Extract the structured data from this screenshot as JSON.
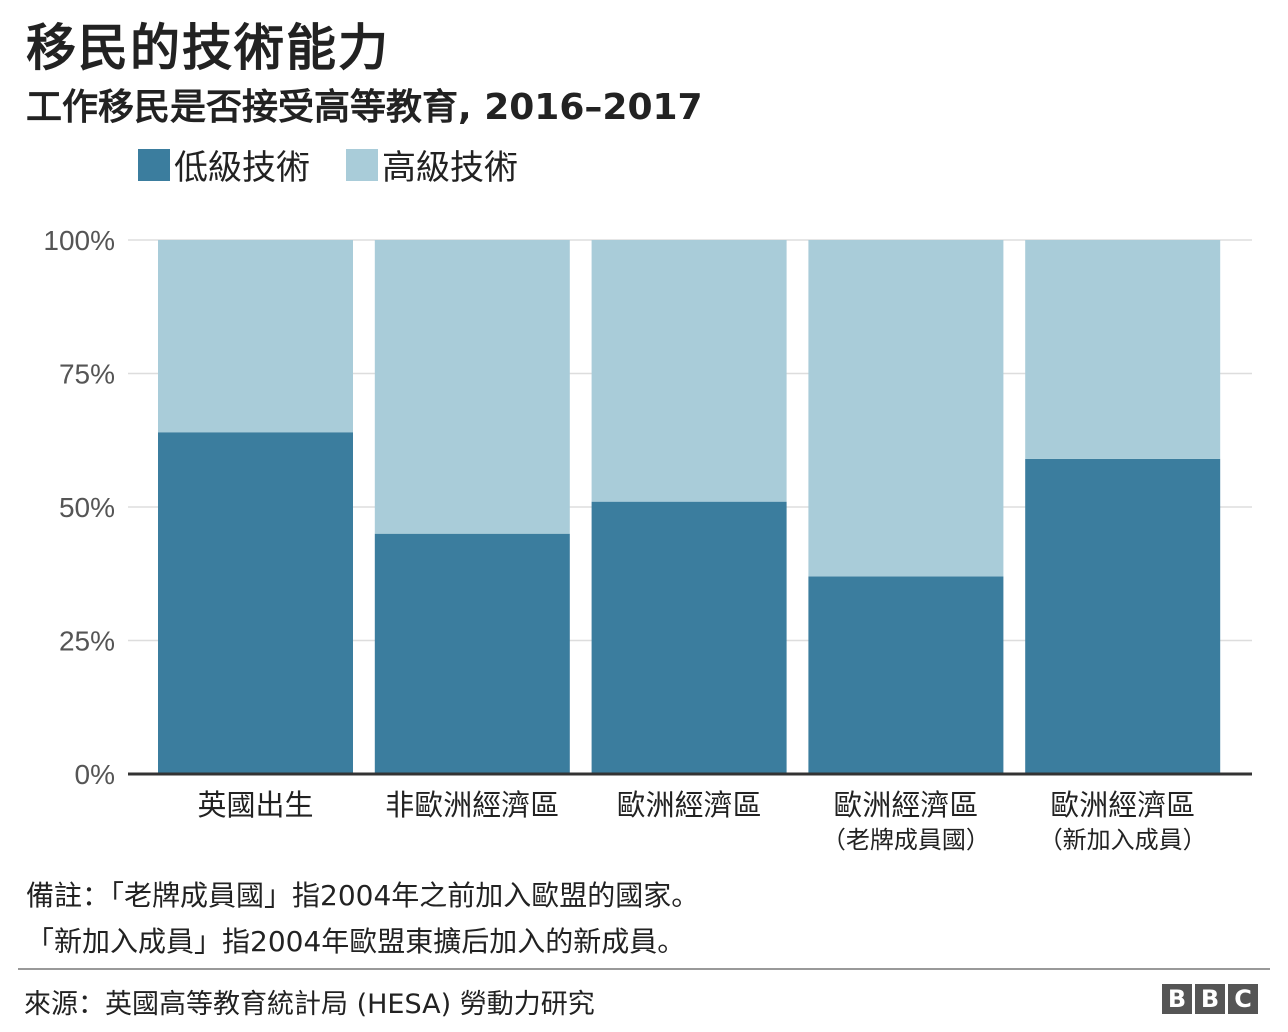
{
  "chart_data": {
    "type": "bar",
    "stacked": true,
    "title": "移民的技術能力",
    "subtitle": "工作移民是否接受高等教育, 2016–2017",
    "categories": [
      {
        "label": "英國出生",
        "sublabel": ""
      },
      {
        "label": "非歐洲經濟區",
        "sublabel": ""
      },
      {
        "label": "歐洲經濟區",
        "sublabel": ""
      },
      {
        "label": "歐洲經濟區",
        "sublabel": "（老牌成員國）"
      },
      {
        "label": "歐洲經濟區",
        "sublabel": "（新加入成員）"
      }
    ],
    "series": [
      {
        "name": "低級技術",
        "color": "#3b7d9e",
        "values": [
          64,
          45,
          51,
          37,
          59
        ]
      },
      {
        "name": "高級技術",
        "color": "#a9ccd9",
        "values": [
          36,
          55,
          49,
          63,
          41
        ]
      }
    ],
    "ylim": [
      0,
      100
    ],
    "yticks": [
      "0%",
      "25%",
      "50%",
      "75%",
      "100%"
    ],
    "grid": true,
    "legend": "top-left",
    "xlabel": "",
    "ylabel": ""
  },
  "notes": [
    "備註：「老牌成員國」指2004年之前加入歐盟的國家。",
    "「新加入成員」指2004年歐盟東擴后加入的新成員。"
  ],
  "source": "來源：英國高等教育統計局 (HESA) 勞動力研究",
  "logo": "BBC"
}
